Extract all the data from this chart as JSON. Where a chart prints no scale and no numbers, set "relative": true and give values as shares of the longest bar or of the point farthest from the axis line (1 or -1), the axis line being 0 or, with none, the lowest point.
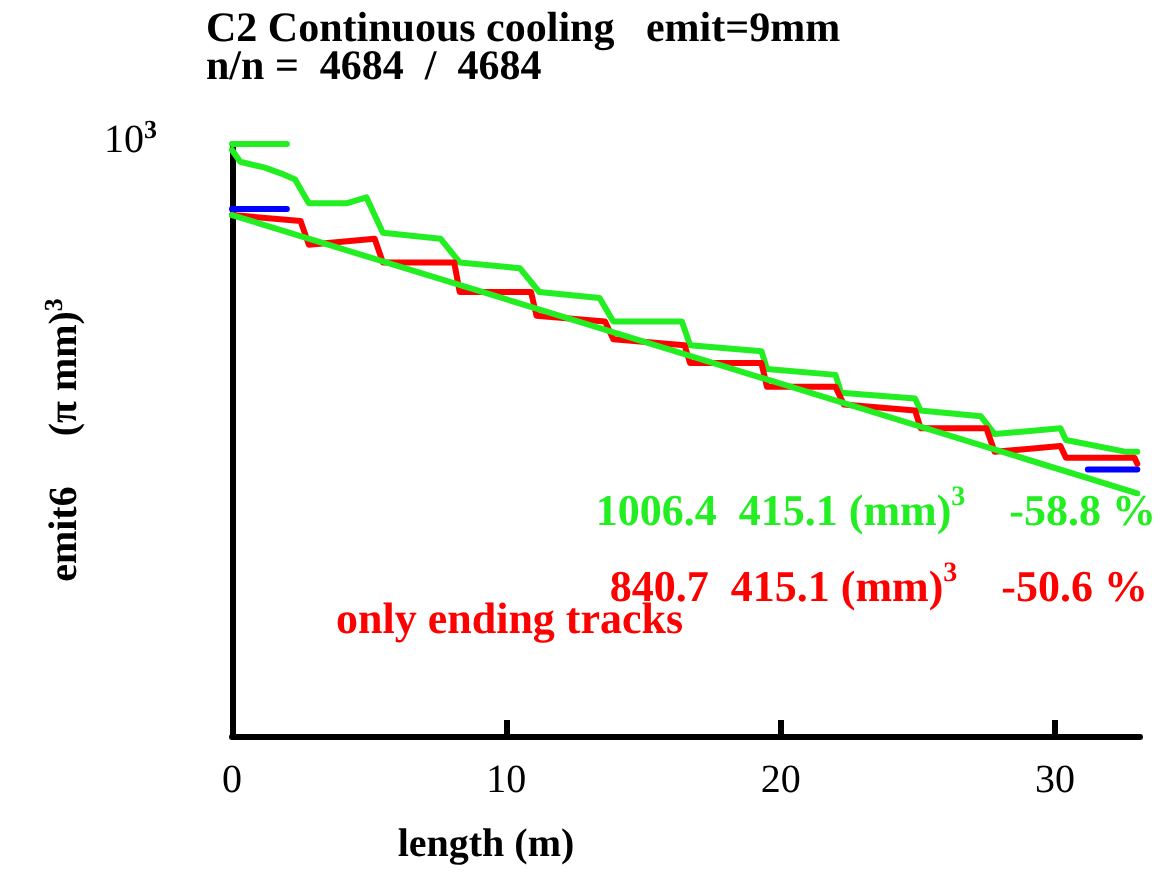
{
  "chart_data": {
    "type": "line",
    "title": "C2 Continuous cooling   emit=9mm",
    "subtitle": "n/n =  4684  /  4684",
    "xlabel": "length (m)",
    "ylabel": "emit6     (π mm)$^{3}$",
    "relative": true,
    "xlim": [
      0,
      33.1
    ],
    "xticks": [
      0,
      10,
      20,
      30
    ],
    "grid": false,
    "marker": "none",
    "line_style": "solid",
    "annotations": [
      "1006.4  415.1 (mm)$^{3}$    -58.8 %",
      "840.7  415.1 (mm)$^{3}$    -50.6 %",
      "only ending tracks",
      "10$^{3}$"
    ],
    "series": [
      {
        "color": "#22ee22",
        "x": [
          0,
          0.3,
          1.2,
          1.8,
          2.3,
          2.8,
          4.2,
          4.9,
          5.5,
          7.6,
          8.3,
          10.5,
          11.2,
          13.4,
          13.9,
          16.4,
          16.7,
          19.3,
          19.5,
          22.0,
          22.2,
          24.9,
          25.1,
          27.3,
          27.8,
          30.2,
          30.4,
          32.6,
          33.0
        ],
        "values": [
          0.99,
          0.97,
          0.96,
          0.95,
          0.94,
          0.9,
          0.9,
          0.91,
          0.85,
          0.84,
          0.8,
          0.79,
          0.75,
          0.74,
          0.7,
          0.7,
          0.66,
          0.65,
          0.62,
          0.61,
          0.58,
          0.57,
          0.55,
          0.54,
          0.51,
          0.52,
          0.5,
          0.48,
          0.48
        ]
      },
      {
        "color": "#ff0000",
        "x": [
          0,
          2.5,
          2.8,
          5.2,
          5.5,
          8.1,
          8.3,
          10.9,
          11.1,
          13.6,
          13.9,
          16.5,
          16.7,
          19.3,
          19.5,
          22.0,
          22.3,
          24.9,
          25.1,
          27.5,
          27.8,
          30.2,
          30.4,
          32.9,
          33.0
        ],
        "values": [
          0.88,
          0.87,
          0.83,
          0.84,
          0.8,
          0.8,
          0.75,
          0.75,
          0.71,
          0.7,
          0.67,
          0.66,
          0.63,
          0.63,
          0.59,
          0.59,
          0.56,
          0.55,
          0.52,
          0.52,
          0.48,
          0.49,
          0.47,
          0.47,
          0.46
        ]
      },
      {
        "color": "#22ee22",
        "x": [
          0,
          33.0
        ],
        "values": [
          0.88,
          0.41
        ]
      },
      {
        "color": "#22ee22",
        "x": [
          0,
          2.0
        ],
        "values": [
          1.0,
          1.0
        ]
      },
      {
        "color": "#0000ff",
        "x": [
          0,
          2.0
        ],
        "values": [
          0.89,
          0.89
        ]
      },
      {
        "color": "#0000ff",
        "x": [
          31.2,
          33.0
        ],
        "values": [
          0.45,
          0.45
        ]
      }
    ]
  }
}
